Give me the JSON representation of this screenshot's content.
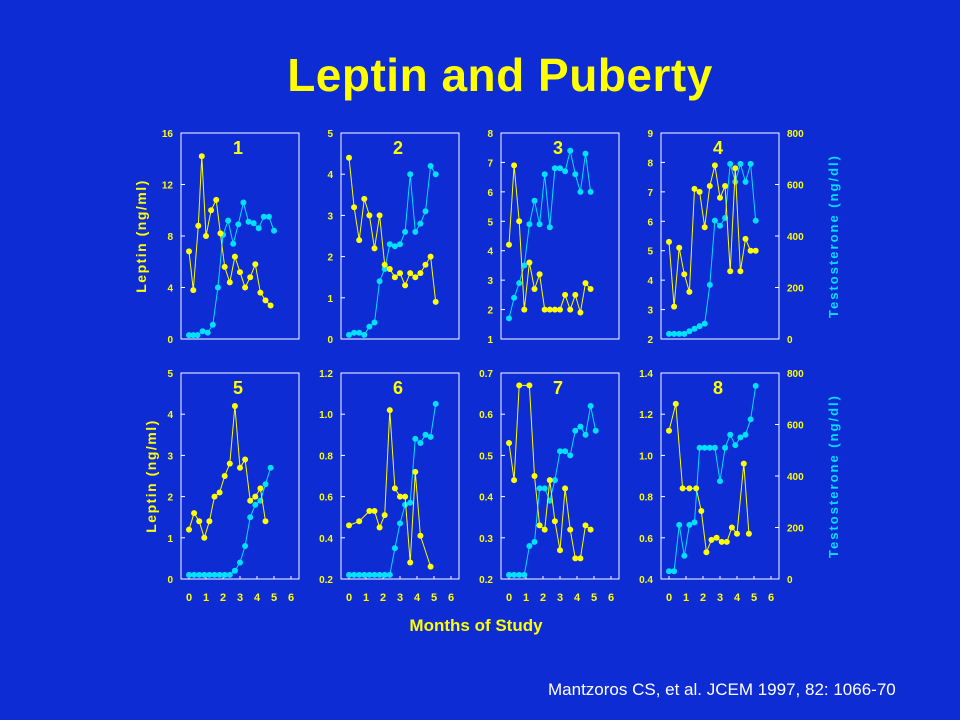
{
  "slide": {
    "title": "Leptin and Puberty",
    "xlabel": "Months of Study",
    "left_axis_label": "Leptin (ng/ml)",
    "right_axis_label": "Testosterone (ng/dl)",
    "citation": "Mantzoros CS, et al. JCEM 1997, 82: 1066-70"
  },
  "colors": {
    "background": "#0d2cd4",
    "leptin": "#ffff00",
    "testosterone": "#00e0ff",
    "axes": "#ffffff"
  },
  "chart_data": [
    {
      "type": "line",
      "panel": "1",
      "leptin_ylim": [
        0,
        16
      ],
      "leptin_ticks": [
        "0",
        "4",
        "8",
        "12",
        "16"
      ],
      "leptin": [
        [
          0,
          6.8
        ],
        [
          0.25,
          3.8
        ],
        [
          0.55,
          8.8
        ],
        [
          0.75,
          14.2
        ],
        [
          1,
          8
        ],
        [
          1.3,
          10
        ],
        [
          1.6,
          10.8
        ],
        [
          1.85,
          8.2
        ],
        [
          2.1,
          5.6
        ],
        [
          2.4,
          4.4
        ],
        [
          2.7,
          6.4
        ],
        [
          3,
          5.2
        ],
        [
          3.3,
          4
        ],
        [
          3.6,
          4.8
        ],
        [
          3.9,
          5.8
        ],
        [
          4.2,
          3.6
        ],
        [
          4.5,
          3
        ],
        [
          4.8,
          2.6
        ]
      ],
      "testosterone": [
        [
          0,
          0.3
        ],
        [
          0.25,
          0.3
        ],
        [
          0.5,
          0.3
        ],
        [
          0.8,
          0.6
        ],
        [
          1.1,
          0.5
        ],
        [
          1.4,
          1.1
        ],
        [
          1.7,
          4
        ],
        [
          2,
          8.1
        ],
        [
          2.3,
          9.2
        ],
        [
          2.6,
          7.4
        ],
        [
          2.9,
          8.9
        ],
        [
          3.2,
          10.6
        ],
        [
          3.5,
          9.1
        ],
        [
          3.8,
          9
        ],
        [
          4.1,
          8.6
        ],
        [
          4.4,
          9.5
        ],
        [
          4.7,
          9.5
        ],
        [
          5,
          8.4
        ]
      ]
    },
    {
      "type": "line",
      "panel": "2",
      "leptin_ylim": [
        0,
        5
      ],
      "leptin_ticks": [
        "0",
        "1",
        "2",
        "3",
        "4",
        "5"
      ],
      "leptin": [
        [
          0,
          4.4
        ],
        [
          0.3,
          3.2
        ],
        [
          0.6,
          2.4
        ],
        [
          0.9,
          3.4
        ],
        [
          1.2,
          3
        ],
        [
          1.5,
          2.2
        ],
        [
          1.8,
          3
        ],
        [
          2.1,
          1.8
        ],
        [
          2.4,
          1.7
        ],
        [
          2.7,
          1.5
        ],
        [
          3,
          1.6
        ],
        [
          3.3,
          1.3
        ],
        [
          3.6,
          1.6
        ],
        [
          3.9,
          1.5
        ],
        [
          4.2,
          1.6
        ],
        [
          4.5,
          1.8
        ],
        [
          4.8,
          2
        ],
        [
          5.1,
          0.9
        ]
      ],
      "testosterone": [
        [
          0,
          0.1
        ],
        [
          0.3,
          0.15
        ],
        [
          0.6,
          0.15
        ],
        [
          0.9,
          0.1
        ],
        [
          1.2,
          0.3
        ],
        [
          1.5,
          0.4
        ],
        [
          1.8,
          1.4
        ],
        [
          2.1,
          1.7
        ],
        [
          2.4,
          2.3
        ],
        [
          2.7,
          2.25
        ],
        [
          3,
          2.3
        ],
        [
          3.3,
          2.6
        ],
        [
          3.6,
          4
        ],
        [
          3.9,
          2.6
        ],
        [
          4.2,
          2.8
        ],
        [
          4.5,
          3.1
        ],
        [
          4.8,
          4.2
        ],
        [
          5.1,
          4
        ]
      ]
    },
    {
      "type": "line",
      "panel": "3",
      "leptin_ylim": [
        1,
        8
      ],
      "leptin_ticks": [
        "1",
        "2",
        "3",
        "4",
        "5",
        "6",
        "7",
        "8"
      ],
      "leptin": [
        [
          0,
          4.2
        ],
        [
          0.3,
          6.9
        ],
        [
          0.6,
          5
        ],
        [
          0.9,
          2
        ],
        [
          1.2,
          3.6
        ],
        [
          1.5,
          2.7
        ],
        [
          1.8,
          3.2
        ],
        [
          2.1,
          2
        ],
        [
          2.4,
          2
        ],
        [
          2.7,
          2
        ],
        [
          3,
          2
        ],
        [
          3.3,
          2.5
        ],
        [
          3.6,
          2
        ],
        [
          3.9,
          2.5
        ],
        [
          4.2,
          1.9
        ],
        [
          4.5,
          2.9
        ],
        [
          4.8,
          2.7
        ]
      ],
      "testosterone": [
        [
          0,
          1.7
        ],
        [
          0.3,
          2.4
        ],
        [
          0.6,
          2.9
        ],
        [
          0.9,
          3.5
        ],
        [
          1.2,
          4.9
        ],
        [
          1.5,
          5.7
        ],
        [
          1.8,
          4.9
        ],
        [
          2.1,
          6.6
        ],
        [
          2.4,
          4.8
        ],
        [
          2.7,
          6.8
        ],
        [
          3,
          6.8
        ],
        [
          3.3,
          6.7
        ],
        [
          3.6,
          7.4
        ],
        [
          3.9,
          6.6
        ],
        [
          4.2,
          6
        ],
        [
          4.5,
          7.3
        ],
        [
          4.8,
          6
        ]
      ]
    },
    {
      "type": "line",
      "panel": "4",
      "leptin_ylim": [
        2,
        9
      ],
      "leptin_ticks": [
        "2",
        "3",
        "4",
        "5",
        "6",
        "7",
        "8",
        "9"
      ],
      "testosterone_ylim": [
        0,
        800
      ],
      "testosterone_ticks": [
        "0",
        "200",
        "400",
        "600",
        "800"
      ],
      "leptin": [
        [
          0,
          5.3
        ],
        [
          0.3,
          3.1
        ],
        [
          0.6,
          5.1
        ],
        [
          0.9,
          4.2
        ],
        [
          1.2,
          3.6
        ],
        [
          1.5,
          7.1
        ],
        [
          1.8,
          7
        ],
        [
          2.1,
          5.8
        ],
        [
          2.4,
          7.2
        ],
        [
          2.7,
          7.9
        ],
        [
          3,
          6.8
        ],
        [
          3.3,
          7.2
        ],
        [
          3.6,
          4.3
        ],
        [
          3.9,
          7.8
        ],
        [
          4.2,
          4.3
        ],
        [
          4.5,
          5.4
        ],
        [
          4.8,
          5
        ],
        [
          5.1,
          5
        ]
      ],
      "testosterone": [
        [
          0,
          20
        ],
        [
          0.3,
          20
        ],
        [
          0.6,
          20
        ],
        [
          0.9,
          20
        ],
        [
          1.2,
          30
        ],
        [
          1.5,
          40
        ],
        [
          1.8,
          50
        ],
        [
          2.1,
          60
        ],
        [
          2.4,
          210
        ],
        [
          2.7,
          460
        ],
        [
          3,
          440
        ],
        [
          3.3,
          470
        ],
        [
          3.6,
          680
        ],
        [
          3.9,
          610
        ],
        [
          4.2,
          680
        ],
        [
          4.5,
          610
        ],
        [
          4.8,
          680
        ],
        [
          5.1,
          460
        ]
      ]
    },
    {
      "type": "line",
      "panel": "5",
      "leptin_ylim": [
        0,
        5
      ],
      "leptin_ticks": [
        "0",
        "1",
        "2",
        "3",
        "4",
        "5"
      ],
      "leptin": [
        [
          0,
          1.2
        ],
        [
          0.3,
          1.6
        ],
        [
          0.6,
          1.4
        ],
        [
          0.9,
          1
        ],
        [
          1.2,
          1.4
        ],
        [
          1.5,
          2
        ],
        [
          1.8,
          2.1
        ],
        [
          2.1,
          2.5
        ],
        [
          2.4,
          2.8
        ],
        [
          2.7,
          4.2
        ],
        [
          3,
          2.7
        ],
        [
          3.3,
          2.9
        ],
        [
          3.6,
          1.9
        ],
        [
          3.9,
          2
        ],
        [
          4.2,
          2.2
        ],
        [
          4.5,
          1.4
        ]
      ],
      "testosterone": [
        [
          0,
          0.1
        ],
        [
          0.3,
          0.1
        ],
        [
          0.6,
          0.1
        ],
        [
          0.9,
          0.1
        ],
        [
          1.2,
          0.1
        ],
        [
          1.5,
          0.1
        ],
        [
          1.8,
          0.1
        ],
        [
          2.1,
          0.1
        ],
        [
          2.4,
          0.1
        ],
        [
          2.7,
          0.2
        ],
        [
          3,
          0.4
        ],
        [
          3.3,
          0.8
        ],
        [
          3.6,
          1.5
        ],
        [
          3.9,
          1.8
        ],
        [
          4.2,
          1.9
        ],
        [
          4.5,
          2.3
        ],
        [
          4.8,
          2.7
        ]
      ]
    },
    {
      "type": "line",
      "panel": "6",
      "leptin_ylim": [
        0.2,
        1.2
      ],
      "leptin_ticks": [
        "0.2",
        "0.4",
        "0.6",
        "0.8",
        "1.0",
        "1.2"
      ],
      "leptin": [
        [
          0,
          0.46
        ],
        [
          0.6,
          0.48
        ],
        [
          1.2,
          0.53
        ],
        [
          1.5,
          0.53
        ],
        [
          1.8,
          0.45
        ],
        [
          2.1,
          0.51
        ],
        [
          2.4,
          1.02
        ],
        [
          2.7,
          0.64
        ],
        [
          3,
          0.6
        ],
        [
          3.3,
          0.6
        ],
        [
          3.6,
          0.28
        ],
        [
          3.9,
          0.72
        ],
        [
          4.2,
          0.41
        ],
        [
          4.8,
          0.26
        ]
      ],
      "testosterone": [
        [
          0,
          0.22
        ],
        [
          0.3,
          0.22
        ],
        [
          0.6,
          0.22
        ],
        [
          0.9,
          0.22
        ],
        [
          1.2,
          0.22
        ],
        [
          1.5,
          0.22
        ],
        [
          1.8,
          0.22
        ],
        [
          2.1,
          0.22
        ],
        [
          2.4,
          0.22
        ],
        [
          2.7,
          0.35
        ],
        [
          3,
          0.47
        ],
        [
          3.3,
          0.56
        ],
        [
          3.6,
          0.57
        ],
        [
          3.9,
          0.88
        ],
        [
          4.2,
          0.86
        ],
        [
          4.5,
          0.9
        ],
        [
          4.8,
          0.89
        ],
        [
          5.1,
          1.05
        ]
      ]
    },
    {
      "type": "line",
      "panel": "7",
      "leptin_ylim": [
        0.2,
        0.7
      ],
      "leptin_ticks": [
        "0.2",
        "0.3",
        "0.4",
        "0.5",
        "0.6",
        "0.7"
      ],
      "leptin": [
        [
          0,
          0.53
        ],
        [
          0.3,
          0.44
        ],
        [
          0.6,
          0.67
        ],
        [
          1.2,
          0.67
        ],
        [
          1.5,
          0.45
        ],
        [
          1.8,
          0.33
        ],
        [
          2.1,
          0.32
        ],
        [
          2.4,
          0.44
        ],
        [
          2.7,
          0.34
        ],
        [
          3,
          0.27
        ],
        [
          3.3,
          0.42
        ],
        [
          3.6,
          0.32
        ],
        [
          3.9,
          0.25
        ],
        [
          4.2,
          0.25
        ],
        [
          4.5,
          0.33
        ],
        [
          4.8,
          0.32
        ]
      ],
      "testosterone": [
        [
          0,
          0.21
        ],
        [
          0.3,
          0.21
        ],
        [
          0.6,
          0.21
        ],
        [
          0.9,
          0.21
        ],
        [
          1.2,
          0.28
        ],
        [
          1.5,
          0.29
        ],
        [
          1.8,
          0.42
        ],
        [
          2.1,
          0.42
        ],
        [
          2.4,
          0.39
        ],
        [
          2.7,
          0.44
        ],
        [
          3,
          0.51
        ],
        [
          3.3,
          0.51
        ],
        [
          3.6,
          0.5
        ],
        [
          3.9,
          0.56
        ],
        [
          4.2,
          0.57
        ],
        [
          4.5,
          0.55
        ],
        [
          4.8,
          0.62
        ],
        [
          5.1,
          0.56
        ]
      ]
    },
    {
      "type": "line",
      "panel": "8",
      "leptin_ylim": [
        0.4,
        1.4
      ],
      "leptin_ticks": [
        "0.4",
        "0.6",
        "0.8",
        "1.0",
        "1.2",
        "1.4"
      ],
      "testosterone_ylim": [
        0,
        800
      ],
      "testosterone_ticks": [
        "0",
        "200",
        "400",
        "600",
        "800"
      ],
      "leptin": [
        [
          0,
          1.12
        ],
        [
          0.4,
          1.25
        ],
        [
          0.8,
          0.84
        ],
        [
          1.2,
          0.84
        ],
        [
          1.6,
          0.84
        ],
        [
          1.9,
          0.73
        ],
        [
          2.2,
          0.53
        ],
        [
          2.5,
          0.59
        ],
        [
          2.8,
          0.6
        ],
        [
          3.1,
          0.58
        ],
        [
          3.4,
          0.58
        ],
        [
          3.7,
          0.65
        ],
        [
          4,
          0.62
        ],
        [
          4.4,
          0.96
        ],
        [
          4.7,
          0.62
        ]
      ],
      "testosterone": [
        [
          0,
          30
        ],
        [
          0.3,
          30
        ],
        [
          0.6,
          210
        ],
        [
          0.9,
          90
        ],
        [
          1.2,
          210
        ],
        [
          1.5,
          220
        ],
        [
          1.8,
          510
        ],
        [
          2.1,
          510
        ],
        [
          2.4,
          510
        ],
        [
          2.7,
          510
        ],
        [
          3,
          380
        ],
        [
          3.3,
          510
        ],
        [
          3.6,
          560
        ],
        [
          3.9,
          520
        ],
        [
          4.2,
          550
        ],
        [
          4.5,
          560
        ],
        [
          4.8,
          620
        ],
        [
          5.1,
          750
        ]
      ]
    }
  ],
  "x_ticks": [
    "0",
    "1",
    "2",
    "3",
    "4",
    "5",
    "6"
  ]
}
